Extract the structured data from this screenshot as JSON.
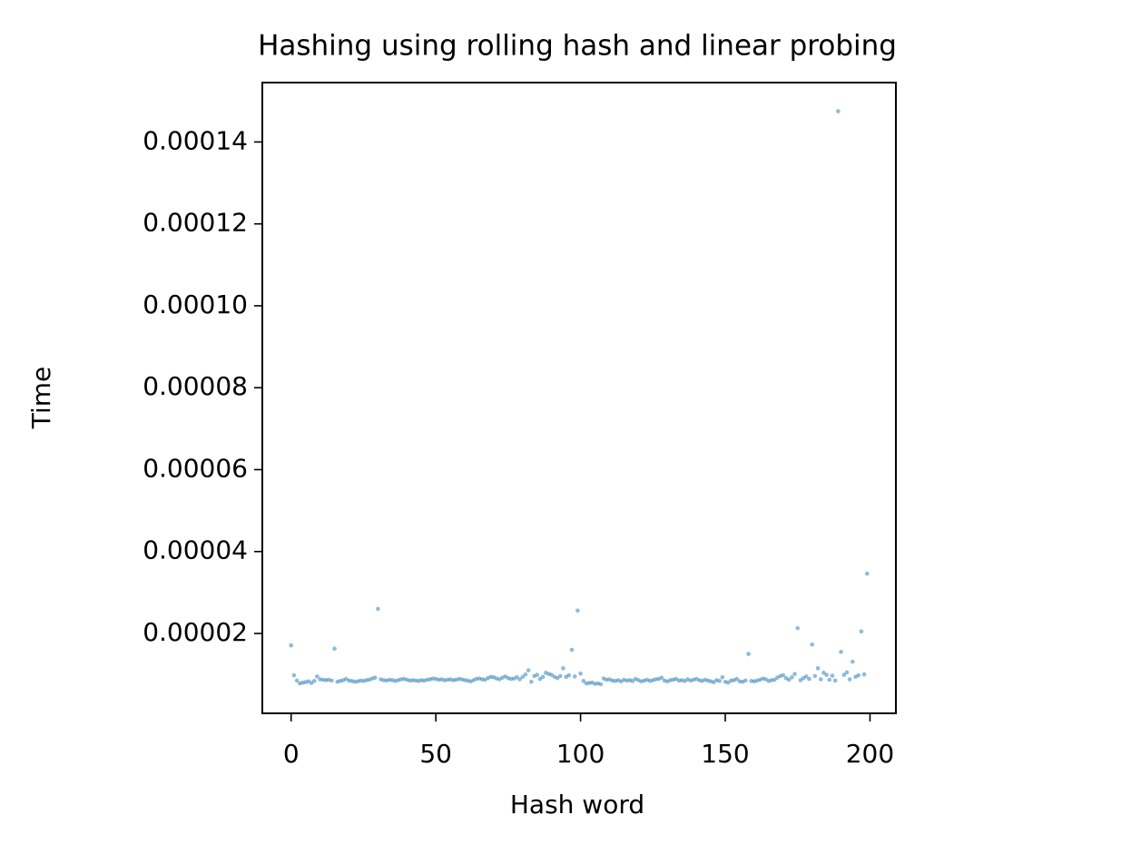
{
  "chart_data": {
    "type": "scatter",
    "title": "Hashing using rolling hash and linear probing",
    "xlabel": "Hash word",
    "ylabel": "Time",
    "xlim": [
      -9.95,
      208.95
    ],
    "xticks": [
      0,
      50,
      100,
      150,
      200
    ],
    "ylim": [
      5e-07,
      0.0001545
    ],
    "yticks": [
      2e-05,
      4e-05,
      6e-05,
      8e-05,
      {
        "value": 0.0001,
        "label": "0.00010"
      },
      0.00012,
      0.00014
    ],
    "series": [
      {
        "color": "#1f77b4",
        "alpha": 0.5,
        "x": [
          0,
          1,
          2,
          3,
          4,
          5,
          6,
          7,
          8,
          9,
          10,
          11,
          12,
          13,
          14,
          15,
          16,
          17,
          18,
          19,
          20,
          21,
          22,
          23,
          24,
          25,
          26,
          27,
          28,
          29,
          30,
          31,
          32,
          33,
          34,
          35,
          36,
          37,
          38,
          39,
          40,
          41,
          42,
          43,
          44,
          45,
          46,
          47,
          48,
          49,
          50,
          51,
          52,
          53,
          54,
          55,
          56,
          57,
          58,
          59,
          60,
          61,
          62,
          63,
          64,
          65,
          66,
          67,
          68,
          69,
          70,
          71,
          72,
          73,
          74,
          75,
          76,
          77,
          78,
          79,
          80,
          81,
          82,
          83,
          84,
          85,
          86,
          87,
          88,
          89,
          90,
          91,
          92,
          93,
          94,
          95,
          96,
          97,
          98,
          99,
          100,
          101,
          102,
          103,
          104,
          105,
          106,
          107,
          108,
          109,
          110,
          111,
          112,
          113,
          114,
          115,
          116,
          117,
          118,
          119,
          120,
          121,
          122,
          123,
          124,
          125,
          126,
          127,
          128,
          129,
          130,
          131,
          132,
          133,
          134,
          135,
          136,
          137,
          138,
          139,
          140,
          141,
          142,
          143,
          144,
          145,
          146,
          147,
          148,
          149,
          150,
          151,
          152,
          153,
          154,
          155,
          156,
          157,
          158,
          159,
          160,
          161,
          162,
          163,
          164,
          165,
          166,
          167,
          168,
          169,
          170,
          171,
          172,
          173,
          174,
          175,
          176,
          177,
          178,
          179,
          180,
          181,
          182,
          183,
          184,
          185,
          186,
          187,
          188,
          189,
          190,
          191,
          192,
          193,
          194,
          195,
          196,
          197,
          198,
          199
        ],
        "values": [
          1.71e-05,
          9.8e-06,
          8.5e-06,
          7.8e-06,
          8e-06,
          8.1e-06,
          8.3e-06,
          7.9e-06,
          8.4e-06,
          9.5e-06,
          8.8e-06,
          8.7e-06,
          8.6e-06,
          8.7e-06,
          8.5e-06,
          1.63e-05,
          8.2e-06,
          8.4e-06,
          8.6e-06,
          8.9e-06,
          8.5e-06,
          8.4e-06,
          8.2e-06,
          8.3e-06,
          8.5e-06,
          8.4e-06,
          8.6e-06,
          8.7e-06,
          9e-06,
          9.2e-06,
          2.6e-05,
          8.8e-06,
          8.6e-06,
          8.5e-06,
          8.7e-06,
          8.6e-06,
          8.4e-06,
          8.6e-06,
          8.8e-06,
          8.9e-06,
          8.7e-06,
          8.5e-06,
          8.6e-06,
          8.5e-06,
          8.4e-06,
          8.6e-06,
          8.5e-06,
          8.7e-06,
          8.8e-06,
          9e-06,
          8.9e-06,
          8.7e-06,
          8.8e-06,
          8.6e-06,
          8.7e-06,
          8.8e-06,
          8.6e-06,
          8.7e-06,
          8.9e-06,
          8.8e-06,
          8.6e-06,
          8.5e-06,
          8.3e-06,
          8.6e-06,
          8.9e-06,
          9e-06,
          8.8e-06,
          8.7e-06,
          9.1e-06,
          9.4e-06,
          9.3e-06,
          9e-06,
          8.8e-06,
          9.2e-06,
          9.5e-06,
          9.1e-06,
          8.9e-06,
          9e-06,
          9.3e-06,
          8.8e-06,
          9.4e-06,
          1e-05,
          1.1e-05,
          8.2e-06,
          9.6e-06,
          9.9e-06,
          8.9e-06,
          9.4e-06,
          1.04e-05,
          1.01e-05,
          9.9e-06,
          9.4e-06,
          9.1e-06,
          9.6e-06,
          1.15e-05,
          9.4e-06,
          9.8e-06,
          1.6e-05,
          9.5e-06,
          2.56e-05,
          1.02e-05,
          8.4e-06,
          7.8e-06,
          7.9e-06,
          8e-06,
          7.7e-06,
          7.8e-06,
          7.6e-06,
          9e-06,
          8.7e-06,
          8.8e-06,
          8.5e-06,
          8.4e-06,
          8.6e-06,
          8.3e-06,
          8.7e-06,
          8.5e-06,
          8.6e-06,
          8.4e-06,
          8.9e-06,
          8.6e-06,
          8.3e-06,
          8.5e-06,
          8.7e-06,
          8.4e-06,
          8.6e-06,
          8.8e-06,
          8.9e-06,
          9.2e-06,
          8.5e-06,
          8.3e-06,
          8.6e-06,
          8.7e-06,
          8.9e-06,
          8.5e-06,
          8.6e-06,
          8.4e-06,
          8.8e-06,
          8.5e-06,
          8.7e-06,
          8.9e-06,
          8.6e-06,
          8.4e-06,
          8.7e-06,
          8.5e-06,
          8.3e-06,
          8.1e-06,
          8.6e-06,
          8.4e-06,
          9.3e-06,
          8.2e-06,
          8e-06,
          8.5e-06,
          8.6e-06,
          8.9e-06,
          8.3e-06,
          8.2e-06,
          8.5e-06,
          1.5e-05,
          8.4e-06,
          8.3e-06,
          8.5e-06,
          8.7e-06,
          9e-06,
          8.8e-06,
          8.4e-06,
          8.6e-06,
          8.7e-06,
          9.2e-06,
          9.6e-06,
          9.8e-06,
          9.1e-06,
          8.7e-06,
          9.3e-06,
          1.01e-05,
          2.13e-05,
          8.6e-06,
          9.1e-06,
          9.5e-06,
          8.9e-06,
          1.73e-05,
          9.6e-06,
          1.15e-05,
          8.8e-06,
          1.04e-05,
          9.9e-06,
          8.7e-06,
          9.7e-06,
          8.5e-06,
          0.0001475,
          1.55e-05,
          9.9e-06,
          1.05e-05,
          8.8e-06,
          1.31e-05,
          9.4e-06,
          9.8e-06,
          2.05e-05,
          1e-05,
          3.46e-05
        ]
      }
    ]
  }
}
